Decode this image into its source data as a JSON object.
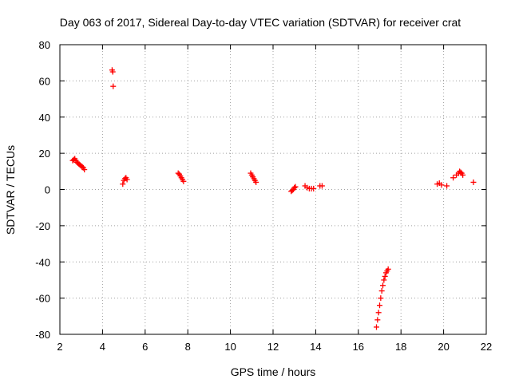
{
  "chart_data": {
    "type": "scatter",
    "title": "Day 063 of 2017, Sidereal Day-to-day VTEC variation (SDTVAR) for receiver crat",
    "xlabel": "GPS time / hours",
    "ylabel": "SDTVAR / TECUs",
    "xlim": [
      2,
      22
    ],
    "ylim": [
      -80,
      80
    ],
    "grid": true,
    "marker": "plus",
    "marker_color": "#ff0000",
    "x_ticks": [
      2,
      4,
      6,
      8,
      10,
      12,
      14,
      16,
      18,
      20,
      22
    ],
    "y_ticks": [
      -80,
      -60,
      -40,
      -20,
      0,
      20,
      40,
      60,
      80
    ],
    "series": [
      {
        "name": "SDTVAR",
        "x": [
          2.6,
          2.65,
          2.7,
          2.75,
          2.8,
          2.85,
          2.9,
          2.95,
          3.0,
          3.05,
          3.1,
          3.15,
          4.45,
          4.48,
          4.5,
          4.95,
          5.0,
          5.05,
          5.1,
          5.15,
          7.55,
          7.6,
          7.65,
          7.7,
          7.75,
          7.8,
          10.95,
          11.0,
          11.05,
          11.1,
          11.15,
          11.2,
          12.85,
          12.9,
          12.95,
          13.0,
          13.05,
          13.5,
          13.6,
          13.7,
          13.8,
          13.9,
          14.2,
          14.3,
          16.85,
          16.9,
          16.95,
          17.0,
          17.05,
          17.1,
          17.15,
          17.2,
          17.25,
          17.3,
          17.35,
          17.4,
          19.7,
          19.8,
          19.9,
          20.15,
          20.45,
          20.6,
          20.7,
          20.75,
          20.8,
          20.85,
          20.9,
          21.4
        ],
        "y": [
          16,
          16.5,
          17,
          16,
          15,
          14.5,
          14,
          13.5,
          13,
          12.5,
          12,
          11,
          66,
          65,
          57,
          3,
          5,
          6,
          6.5,
          5.5,
          9,
          8.5,
          7.5,
          6.5,
          5.5,
          4.5,
          9,
          8,
          7,
          6,
          5,
          4,
          -1,
          -0.5,
          0,
          1,
          1.5,
          2,
          1,
          0.5,
          0.5,
          0.5,
          2,
          2,
          -76,
          -72,
          -68,
          -64,
          -60,
          -56,
          -53,
          -50,
          -48,
          -46,
          -45,
          -44,
          3,
          3.5,
          2.5,
          2,
          6.5,
          8,
          9,
          10,
          9.5,
          9,
          8,
          4
        ]
      }
    ]
  }
}
